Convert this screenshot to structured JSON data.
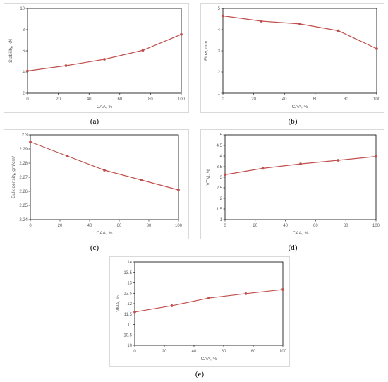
{
  "figure": {
    "captions": [
      "(a)",
      "(b)",
      "(c)",
      "(d)",
      "(e)"
    ]
  },
  "chart_data": [
    {
      "type": "line",
      "panel": "a",
      "x": [
        0,
        25,
        50,
        75,
        100
      ],
      "series": [
        {
          "values": [
            4.1,
            4.6,
            5.2,
            6.05,
            7.55
          ],
          "color": "#c0504d"
        }
      ],
      "xlabel": "CAA, %",
      "ylabel": "Stability, kN",
      "xlim": [
        0,
        100
      ],
      "ylim": [
        2,
        10
      ],
      "xticks": [
        0,
        20,
        40,
        60,
        80,
        100
      ],
      "yticks": [
        2,
        4,
        6,
        8,
        10
      ],
      "ytick_labels": [
        "2",
        "4",
        "6",
        "8",
        "10"
      ],
      "grid": false
    },
    {
      "type": "line",
      "panel": "b",
      "x": [
        0,
        25,
        50,
        75,
        100
      ],
      "series": [
        {
          "values": [
            4.65,
            4.4,
            4.27,
            3.95,
            3.1
          ],
          "color": "#c0504d"
        }
      ],
      "xlabel": "CAA, %",
      "ylabel": "Flow, mm",
      "xlim": [
        0,
        100
      ],
      "ylim": [
        1,
        5
      ],
      "xticks": [
        0,
        20,
        40,
        60,
        80,
        100
      ],
      "yticks": [
        1,
        2,
        3,
        4,
        5
      ],
      "ytick_labels": [
        "1",
        "2",
        "3",
        "4",
        "5"
      ],
      "grid": false
    },
    {
      "type": "line",
      "panel": "c",
      "x": [
        0,
        25,
        50,
        75,
        100
      ],
      "series": [
        {
          "values": [
            2.295,
            2.285,
            2.275,
            2.268,
            2.261
          ],
          "color": "#c0504d"
        }
      ],
      "xlabel": "CAA, %",
      "ylabel": "Bulk density, gm/cm³",
      "xlim": [
        0,
        100
      ],
      "ylim": [
        2.24,
        2.3
      ],
      "xticks": [
        0,
        20,
        40,
        60,
        80,
        100
      ],
      "yticks": [
        2.24,
        2.25,
        2.26,
        2.27,
        2.28,
        2.29,
        2.3
      ],
      "ytick_labels": [
        "2.24",
        "2.25",
        "2.26",
        "2.27",
        "2.28",
        "2.29",
        "2.3"
      ],
      "grid": false
    },
    {
      "type": "line",
      "panel": "d",
      "x": [
        0,
        25,
        50,
        75,
        100
      ],
      "series": [
        {
          "values": [
            3.12,
            3.42,
            3.63,
            3.8,
            3.98
          ],
          "color": "#c0504d"
        }
      ],
      "xlabel": "CAA, %",
      "ylabel": "VTM, %",
      "xlim": [
        0,
        100
      ],
      "ylim": [
        1,
        5
      ],
      "xticks": [
        0,
        20,
        40,
        60,
        80,
        100
      ],
      "yticks": [
        1,
        1.5,
        2,
        2.5,
        3,
        3.5,
        4,
        4.5,
        5
      ],
      "ytick_labels": [
        "1",
        "1.5",
        "2",
        "2.5",
        "3",
        "3.5",
        "4",
        "4.5",
        "5"
      ],
      "grid": false
    },
    {
      "type": "line",
      "panel": "e",
      "x": [
        0,
        25,
        50,
        75,
        100
      ],
      "series": [
        {
          "values": [
            11.6,
            11.9,
            12.27,
            12.48,
            12.68
          ],
          "color": "#c0504d"
        }
      ],
      "xlabel": "CAA, %",
      "ylabel": "VMA, %",
      "xlim": [
        0,
        100
      ],
      "ylim": [
        10,
        14
      ],
      "xticks": [
        0,
        20,
        40,
        60,
        80,
        100
      ],
      "yticks": [
        10,
        10.5,
        11,
        11.5,
        12,
        12.5,
        13,
        13.5,
        14
      ],
      "ytick_labels": [
        "10",
        "10.5",
        "11",
        "11.5",
        "12",
        "12.5",
        "13",
        "13.5",
        "14"
      ],
      "grid": false
    }
  ]
}
